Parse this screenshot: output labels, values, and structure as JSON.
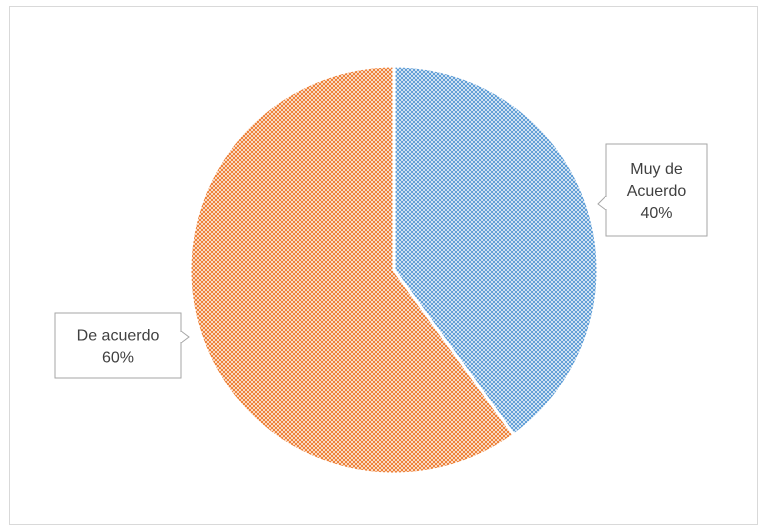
{
  "chart_data": {
    "type": "pie",
    "title": "",
    "slices": [
      {
        "label": "Muy de Acuerdo",
        "label_lines": [
          "Muy de",
          "Acuerdo"
        ],
        "percent_label": "40%",
        "value": 40,
        "color": "#5b9bd5"
      },
      {
        "label": "De acuerdo",
        "label_lines": [
          "De acuerdo"
        ],
        "percent_label": "60%",
        "value": 60,
        "color": "#ed7d31"
      }
    ],
    "fill_pattern": "crosshatch",
    "legend": "none",
    "data_labels": "callout"
  }
}
